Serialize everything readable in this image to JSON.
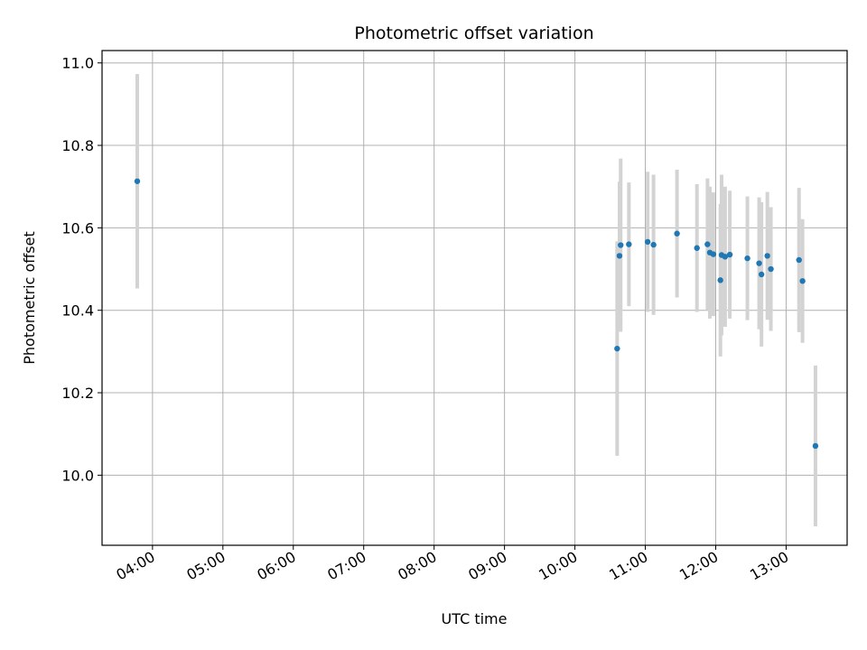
{
  "chart_data": {
    "type": "scatter",
    "title": "Photometric offset variation",
    "xlabel": "UTC time",
    "ylabel": "Photometric offset",
    "x_unit": "hours UTC",
    "xlim": [
      "03:17",
      "13:52"
    ],
    "ylim": [
      9.83,
      11.03
    ],
    "x_ticks": [
      "04:00",
      "05:00",
      "06:00",
      "07:00",
      "08:00",
      "09:00",
      "10:00",
      "11:00",
      "12:00",
      "13:00"
    ],
    "y_ticks": [
      "10.0",
      "10.2",
      "10.4",
      "10.6",
      "10.8",
      "11.0"
    ],
    "grid": true,
    "colors": {
      "point": "#1f77b4",
      "errorbar": "#d3d3d3",
      "grid": "#b0b0b0"
    },
    "points": [
      {
        "time": "03:47",
        "y": 10.713,
        "err": 0.26
      },
      {
        "time": "10:36",
        "y": 10.307,
        "err": 0.26
      },
      {
        "time": "10:38",
        "y": 10.532,
        "err": 0.18
      },
      {
        "time": "10:39",
        "y": 10.558,
        "err": 0.21
      },
      {
        "time": "10:46",
        "y": 10.56,
        "err": 0.15
      },
      {
        "time": "11:02",
        "y": 10.566,
        "err": 0.17
      },
      {
        "time": "11:07",
        "y": 10.559,
        "err": 0.17
      },
      {
        "time": "11:27",
        "y": 10.586,
        "err": 0.155
      },
      {
        "time": "11:44",
        "y": 10.551,
        "err": 0.155
      },
      {
        "time": "11:53",
        "y": 10.56,
        "err": 0.16
      },
      {
        "time": "11:55",
        "y": 10.54,
        "err": 0.16
      },
      {
        "time": "11:58",
        "y": 10.536,
        "err": 0.15
      },
      {
        "time": "12:04",
        "y": 10.473,
        "err": 0.185
      },
      {
        "time": "12:05",
        "y": 10.534,
        "err": 0.195
      },
      {
        "time": "12:08",
        "y": 10.53,
        "err": 0.17
      },
      {
        "time": "12:12",
        "y": 10.535,
        "err": 0.155
      },
      {
        "time": "12:27",
        "y": 10.526,
        "err": 0.15
      },
      {
        "time": "12:37",
        "y": 10.514,
        "err": 0.16
      },
      {
        "time": "12:39",
        "y": 10.487,
        "err": 0.175
      },
      {
        "time": "12:44",
        "y": 10.532,
        "err": 0.155
      },
      {
        "time": "12:47",
        "y": 10.5,
        "err": 0.15
      },
      {
        "time": "13:11",
        "y": 10.522,
        "err": 0.175
      },
      {
        "time": "13:14",
        "y": 10.471,
        "err": 0.15
      },
      {
        "time": "13:25",
        "y": 10.071,
        "err": 0.195
      }
    ]
  }
}
